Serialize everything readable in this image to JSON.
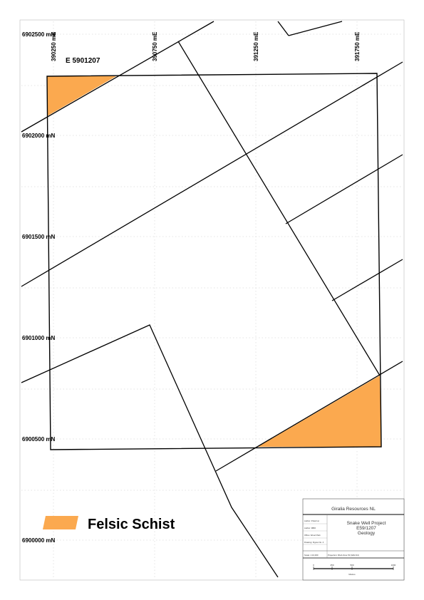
{
  "map": {
    "tenement_label": "E  5901207",
    "easting_labels": [
      "390250 mE",
      "390750 mE",
      "391250 mE",
      "391750 mE"
    ],
    "northing_labels": [
      "6902500 mN",
      "6902000 mN",
      "6901500 mN",
      "6901000 mN",
      "6900500 mN",
      "6900000 mN"
    ]
  },
  "legend": {
    "items": [
      {
        "label": "Felsic Schist",
        "color": "#fba94f"
      }
    ]
  },
  "title_block": {
    "company": "Giralia Resources NL",
    "project": "Snake Well Project",
    "tenement": "E59/1207",
    "subject": "Geology",
    "rows": [
      "Author: P.Hal 1st",
      "Author: MBO",
      "Office: Wood Park",
      "Drawing: Figure No. 4",
      "Scale: 1:10,000"
    ],
    "projection": "Projection: MGA Zone 50 (GDA 94)",
    "scale_ticks": [
      "0",
      "250",
      "500",
      "1000"
    ],
    "scale_unit": "Metres"
  },
  "colors": {
    "felsic_schist": "#fba94f",
    "line": "#000000",
    "grid": "#c8c8c8"
  }
}
